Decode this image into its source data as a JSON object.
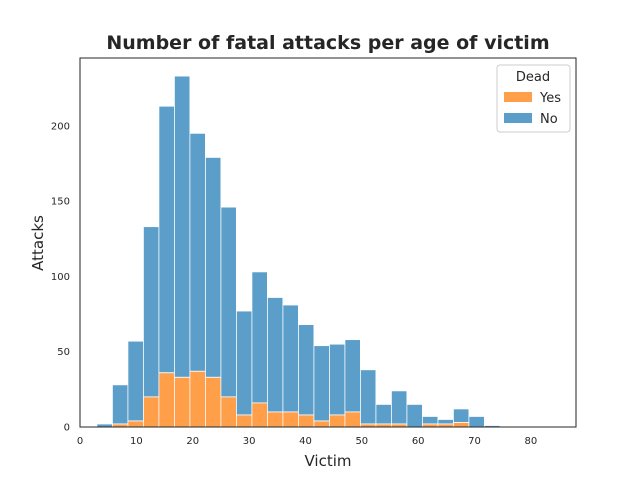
{
  "chart_data": {
    "type": "bar",
    "stacked": true,
    "title": "Number of fatal attacks per age of victim",
    "xlabel": "Victim",
    "ylabel": "Attacks",
    "xlim": [
      0,
      88
    ],
    "ylim": [
      0,
      245
    ],
    "xticks": [
      0,
      10,
      20,
      30,
      40,
      50,
      60,
      70,
      80
    ],
    "yticks": [
      0,
      50,
      100,
      150,
      200
    ],
    "grid": false,
    "legend": {
      "title": "Dead",
      "placement": "top-right"
    },
    "bin_width": 2.75,
    "bins_start": [
      3.0,
      5.75,
      8.5,
      11.25,
      14.0,
      16.75,
      19.5,
      22.25,
      25.0,
      27.75,
      30.5,
      33.25,
      36.0,
      38.75,
      41.5,
      44.25,
      47.0,
      49.75,
      52.5,
      55.25,
      58.0,
      60.75,
      63.5,
      66.25,
      69.0,
      71.75,
      74.5,
      77.25,
      80.0,
      82.75
    ],
    "series": [
      {
        "name": "Yes",
        "color": "#ff9f4a",
        "values": [
          0,
          2,
          4,
          20,
          36,
          33,
          37,
          33,
          20,
          8,
          16,
          10,
          10,
          8,
          4,
          8,
          10,
          2,
          2,
          2,
          0,
          2,
          2,
          3,
          0,
          0,
          0,
          0,
          0,
          0
        ]
      },
      {
        "name": "No",
        "color": "#5a9ec9",
        "values": [
          2,
          26,
          53,
          113,
          177,
          200,
          158,
          146,
          126,
          69,
          87,
          76,
          71,
          60,
          50,
          47,
          48,
          36,
          13,
          22,
          15,
          5,
          3,
          9,
          7,
          1,
          0,
          0,
          0,
          0
        ]
      }
    ]
  }
}
